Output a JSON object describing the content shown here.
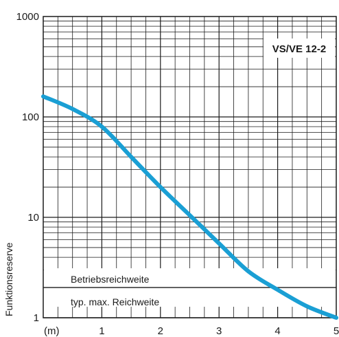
{
  "chart_data": {
    "type": "line",
    "title": "",
    "annotation": "VS/VE 12-2",
    "xlabel": "(m)",
    "ylabel": "Funktionsreserve",
    "y_scale": "log",
    "xlim": [
      0,
      5
    ],
    "ylim": [
      1,
      1000
    ],
    "x_tick_labels": [
      "1",
      "2",
      "3",
      "4",
      "5"
    ],
    "x_ticks": [
      1,
      2,
      3,
      4,
      5
    ],
    "y_tick_labels": [
      "1",
      "10",
      "100",
      "1000"
    ],
    "y_ticks": [
      1,
      10,
      100,
      1000
    ],
    "grid": true,
    "threshold": {
      "value": 2,
      "label_above": "Betriebsreichweite",
      "label_below": "typ. max. Reichweite"
    },
    "series": [
      {
        "color": "#1a9fd4",
        "x": [
          0,
          0.5,
          1.0,
          1.5,
          2.0,
          2.5,
          3.0,
          3.5,
          4.0,
          4.5,
          5.0
        ],
        "y": [
          160,
          120,
          80,
          40,
          20,
          10.5,
          5.5,
          2.9,
          1.9,
          1.3,
          1.0
        ]
      }
    ]
  }
}
